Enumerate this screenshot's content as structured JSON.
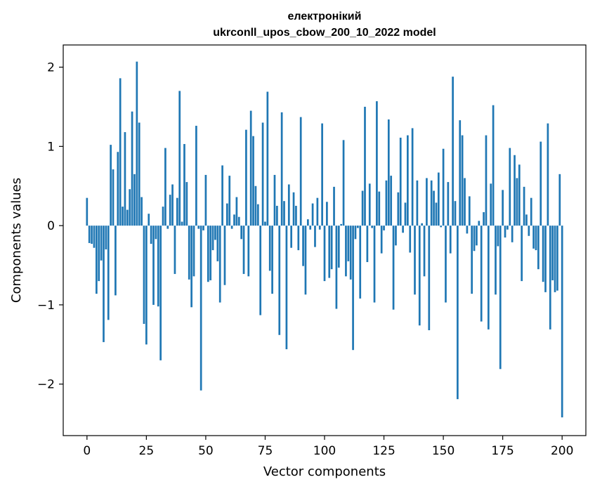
{
  "chart_data": {
    "type": "bar",
    "title": "електронікий",
    "subtitle": "ukrconll_upos_cbow_200_10_2022 model",
    "xlabel": "Vector components",
    "ylabel": "Components values",
    "xlim": [
      -10,
      210
    ],
    "ylim": [
      -2.65,
      2.28
    ],
    "x_ticks": [
      0,
      25,
      50,
      75,
      100,
      125,
      150,
      175,
      200
    ],
    "x_tick_labels": [
      "0",
      "25",
      "50",
      "75",
      "100",
      "125",
      "150",
      "175",
      "200"
    ],
    "y_ticks": [
      -2,
      -1,
      0,
      1,
      2
    ],
    "y_tick_labels": [
      "−2",
      "−1",
      "0",
      "1",
      "2"
    ],
    "grid": false,
    "color": "#1f77b4",
    "values": [
      0.35,
      -0.22,
      -0.23,
      -0.28,
      -0.86,
      -0.7,
      -0.44,
      -1.47,
      -0.3,
      -1.19,
      1.02,
      0.71,
      -0.88,
      0.93,
      1.86,
      0.24,
      1.18,
      0.2,
      0.46,
      1.44,
      0.65,
      2.07,
      1.3,
      0.36,
      -1.24,
      -1.5,
      0.15,
      -0.23,
      -1.0,
      -0.17,
      -1.02,
      -1.7,
      0.24,
      0.98,
      -0.04,
      0.39,
      0.52,
      -0.61,
      0.35,
      1.7,
      0.05,
      1.03,
      0.55,
      -0.68,
      -1.03,
      -0.64,
      1.26,
      -0.04,
      -2.08,
      -0.06,
      0.64,
      -0.71,
      -0.69,
      -0.31,
      -0.18,
      -0.45,
      -0.97,
      0.76,
      -0.75,
      0.28,
      0.63,
      -0.04,
      0.14,
      0.36,
      0.11,
      -0.17,
      -0.61,
      1.21,
      -0.64,
      1.45,
      1.13,
      0.5,
      0.27,
      -1.13,
      1.3,
      0.05,
      1.69,
      -0.57,
      -0.86,
      0.64,
      0.25,
      -1.38,
      1.43,
      0.31,
      -1.56,
      0.52,
      -0.28,
      0.42,
      0.25,
      -0.31,
      1.37,
      -0.51,
      -0.87,
      0.08,
      -0.05,
      0.28,
      -0.27,
      0.35,
      -0.05,
      1.29,
      -0.7,
      0.3,
      -0.66,
      -0.55,
      0.49,
      -1.05,
      -0.53,
      0.02,
      1.08,
      -0.64,
      -0.45,
      -0.68,
      -1.57,
      -0.17,
      -0.03,
      -0.92,
      0.44,
      1.5,
      -0.46,
      0.53,
      -0.03,
      -0.97,
      1.57,
      0.43,
      -0.35,
      -0.06,
      0.57,
      1.34,
      0.63,
      -1.06,
      -0.25,
      0.42,
      1.11,
      -0.09,
      0.29,
      1.14,
      -0.34,
      1.23,
      -0.87,
      0.57,
      -1.26,
      0.03,
      -0.64,
      0.6,
      -1.32,
      0.57,
      0.44,
      0.29,
      0.67,
      -0.02,
      0.97,
      -0.97,
      0.55,
      -0.35,
      1.88,
      0.31,
      -2.19,
      1.33,
      1.14,
      0.6,
      -0.1,
      0.37,
      -0.86,
      -0.32,
      -0.25,
      0.06,
      -1.21,
      0.17,
      1.14,
      -1.31,
      0.53,
      1.52,
      -0.87,
      -0.26,
      -1.81,
      0.45,
      -0.15,
      -0.05,
      0.98,
      -0.21,
      0.89,
      0.6,
      0.77,
      -0.7,
      0.49,
      0.14,
      -0.13,
      0.35,
      -0.29,
      -0.31,
      -0.55,
      1.06,
      -0.71,
      -0.84,
      1.29,
      -1.31,
      -0.69,
      -0.84,
      -0.82,
      0.65,
      -2.42
    ]
  }
}
